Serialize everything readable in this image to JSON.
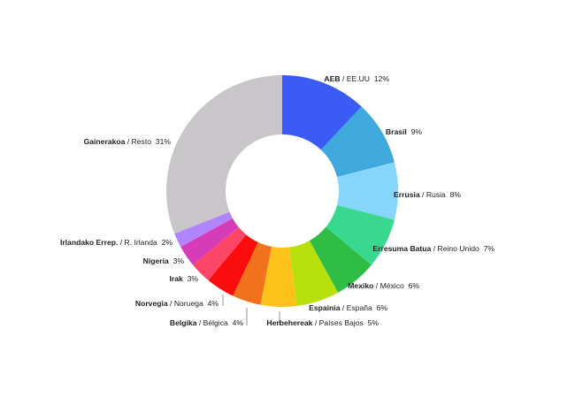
{
  "chart_data": {
    "type": "pie",
    "variant": "donut",
    "start_angle_deg": 0,
    "direction": "clockwise",
    "slices": [
      {
        "name": "AEB",
        "alt_name": "EE.UU",
        "percent_label": "12%",
        "value": 12,
        "color": "#3a5cf5"
      },
      {
        "name": "Brasil",
        "alt_name": "",
        "percent_label": "9%",
        "value": 9,
        "color": "#3fa8dc"
      },
      {
        "name": "Errusia",
        "alt_name": "Rusia",
        "percent_label": "8%",
        "value": 8,
        "color": "#86d6fb"
      },
      {
        "name": "Erresuma Batua",
        "alt_name": "Reino Unido",
        "percent_label": "7%",
        "value": 7,
        "color": "#38d98f"
      },
      {
        "name": "Mexiko",
        "alt_name": "México",
        "percent_label": "6%",
        "value": 6,
        "color": "#2fbd46"
      },
      {
        "name": "Espainia",
        "alt_name": "España",
        "percent_label": "6%",
        "value": 6,
        "color": "#b8e00a"
      },
      {
        "name": "Herbehereak",
        "alt_name": "Países Bajos",
        "percent_label": "5%",
        "value": 5,
        "color": "#fcc21a"
      },
      {
        "name": "Belgika",
        "alt_name": "Bélgica",
        "percent_label": "4%",
        "value": 4,
        "color": "#f2711c"
      },
      {
        "name": "Norvegia",
        "alt_name": "Noruega",
        "percent_label": "4%",
        "value": 4,
        "color": "#fb0d0d"
      },
      {
        "name": "Irak",
        "alt_name": "",
        "percent_label": "3%",
        "value": 3,
        "color": "#fb4668"
      },
      {
        "name": "Nigeria",
        "alt_name": "",
        "percent_label": "3%",
        "value": 3,
        "color": "#d63cb8"
      },
      {
        "name": "Irlandako Errep.",
        "alt_name": "R. Irlanda",
        "percent_label": "2%",
        "value": 2,
        "color": "#b084fb"
      },
      {
        "name": "Gainerakoa",
        "alt_name": "Resto",
        "percent_label": "31%",
        "value": 31,
        "color": "#c8c6c8"
      }
    ]
  }
}
